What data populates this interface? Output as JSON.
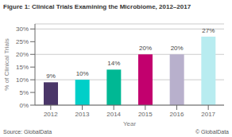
{
  "chart_data": {
    "type": "bar",
    "title": "Figure 1: Clinical Trials Examining the Microbiome, 2012–2017",
    "xlabel": "Year",
    "ylabel": "% of Clinical Trials",
    "categories": [
      "2012",
      "2013",
      "2014",
      "2015",
      "2016",
      "2017"
    ],
    "values": [
      9,
      10,
      14,
      20,
      20,
      27
    ],
    "value_labels": [
      "9%",
      "10%",
      "14%",
      "20%",
      "20%",
      "27%"
    ],
    "data_labels": true,
    "colors": [
      "#4a3668",
      "#00cfc8",
      "#00b894",
      "#c2006e",
      "#b8b0cc",
      "#b8ecf0"
    ],
    "ylim": [
      0,
      32
    ],
    "yticks": [
      {
        "value": 0,
        "label": "0%"
      },
      {
        "value": 5,
        "label": "5%"
      },
      {
        "value": 10,
        "label": "10%"
      },
      {
        "value": 15,
        "label": "15%"
      },
      {
        "value": 20,
        "label": "20%"
      },
      {
        "value": 25,
        "label": "25%"
      },
      {
        "value": 30,
        "label": "30%"
      }
    ],
    "grid": true,
    "annotations": [
      "Source: GlobalData",
      "© GlobalData"
    ]
  }
}
